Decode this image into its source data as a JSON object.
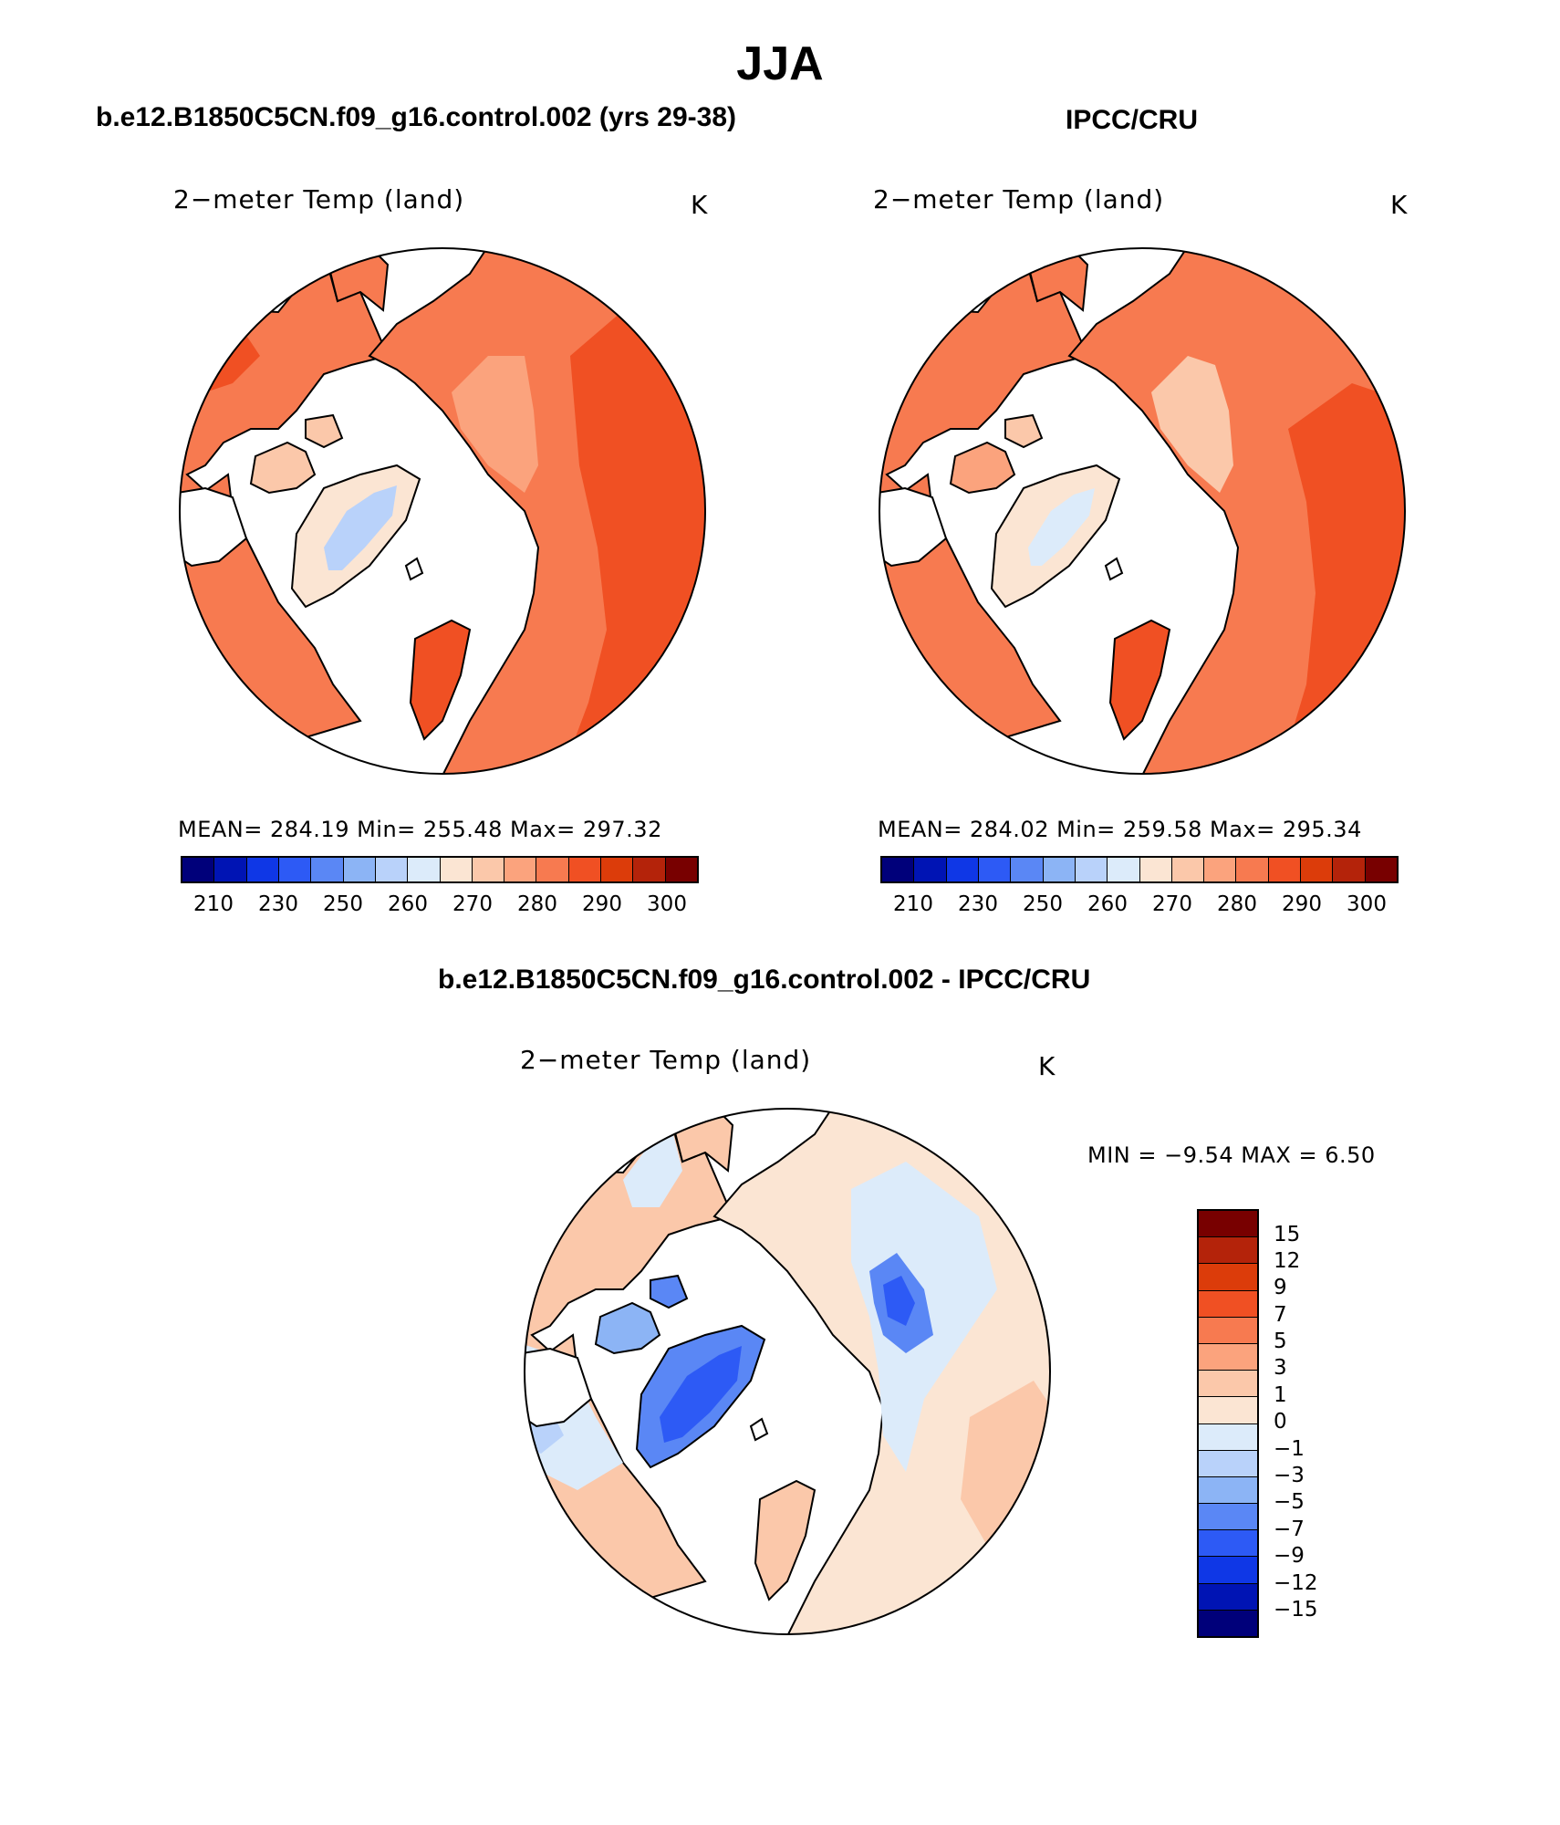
{
  "title": "JJA",
  "left_header": "b.e12.B1850C5CN.f09_g16.control.002 (yrs 29-38)",
  "right_header": "IPCC/CRU",
  "diff_header": "b.e12.B1850C5CN.f09_g16.control.002 - IPCC/CRU",
  "panels": {
    "model": {
      "variable": "2−meter Temp (land)",
      "units": "K",
      "stats": "MEAN= 284.19   Min= 255.48   Max= 297.32",
      "mean": 284.19,
      "min": 255.48,
      "max": 297.32
    },
    "obs": {
      "variable": "2−meter Temp (land)",
      "units": "K",
      "stats": "MEAN= 284.02   Min= 259.58   Max= 295.34",
      "mean": 284.02,
      "min": 259.58,
      "max": 295.34
    },
    "diff": {
      "variable": "2−meter Temp (land)",
      "units": "K",
      "stats": "MIN =   −9.54  MAX =     6.50",
      "min": -9.54,
      "max": 6.5
    }
  },
  "abs_colorbar": {
    "colors": [
      "#00007a",
      "#0014b4",
      "#0f37e6",
      "#2d5af5",
      "#5a87f5",
      "#8cb4f5",
      "#b9d2fa",
      "#dcebfa",
      "#fbe5d3",
      "#fbc8aa",
      "#fba37d",
      "#f77a50",
      "#f05023",
      "#dc3c0a",
      "#b4230a",
      "#780000"
    ],
    "tick_labels": [
      "210",
      "230",
      "250",
      "260",
      "270",
      "280",
      "290",
      "300"
    ]
  },
  "diff_colorbar": {
    "colors": [
      "#00007a",
      "#0014b4",
      "#0f37e6",
      "#2d5af5",
      "#5a87f5",
      "#8cb4f5",
      "#b9d2fa",
      "#dcebfa",
      "#fbe5d3",
      "#fbc8aa",
      "#fba37d",
      "#f77a50",
      "#f05023",
      "#dc3c0a",
      "#b4230a",
      "#780000"
    ],
    "tick_labels": [
      "−15",
      "−12",
      "−9",
      "−7",
      "−5",
      "−3",
      "−1",
      "0",
      "1",
      "3",
      "5",
      "7",
      "9",
      "12",
      "15"
    ]
  }
}
